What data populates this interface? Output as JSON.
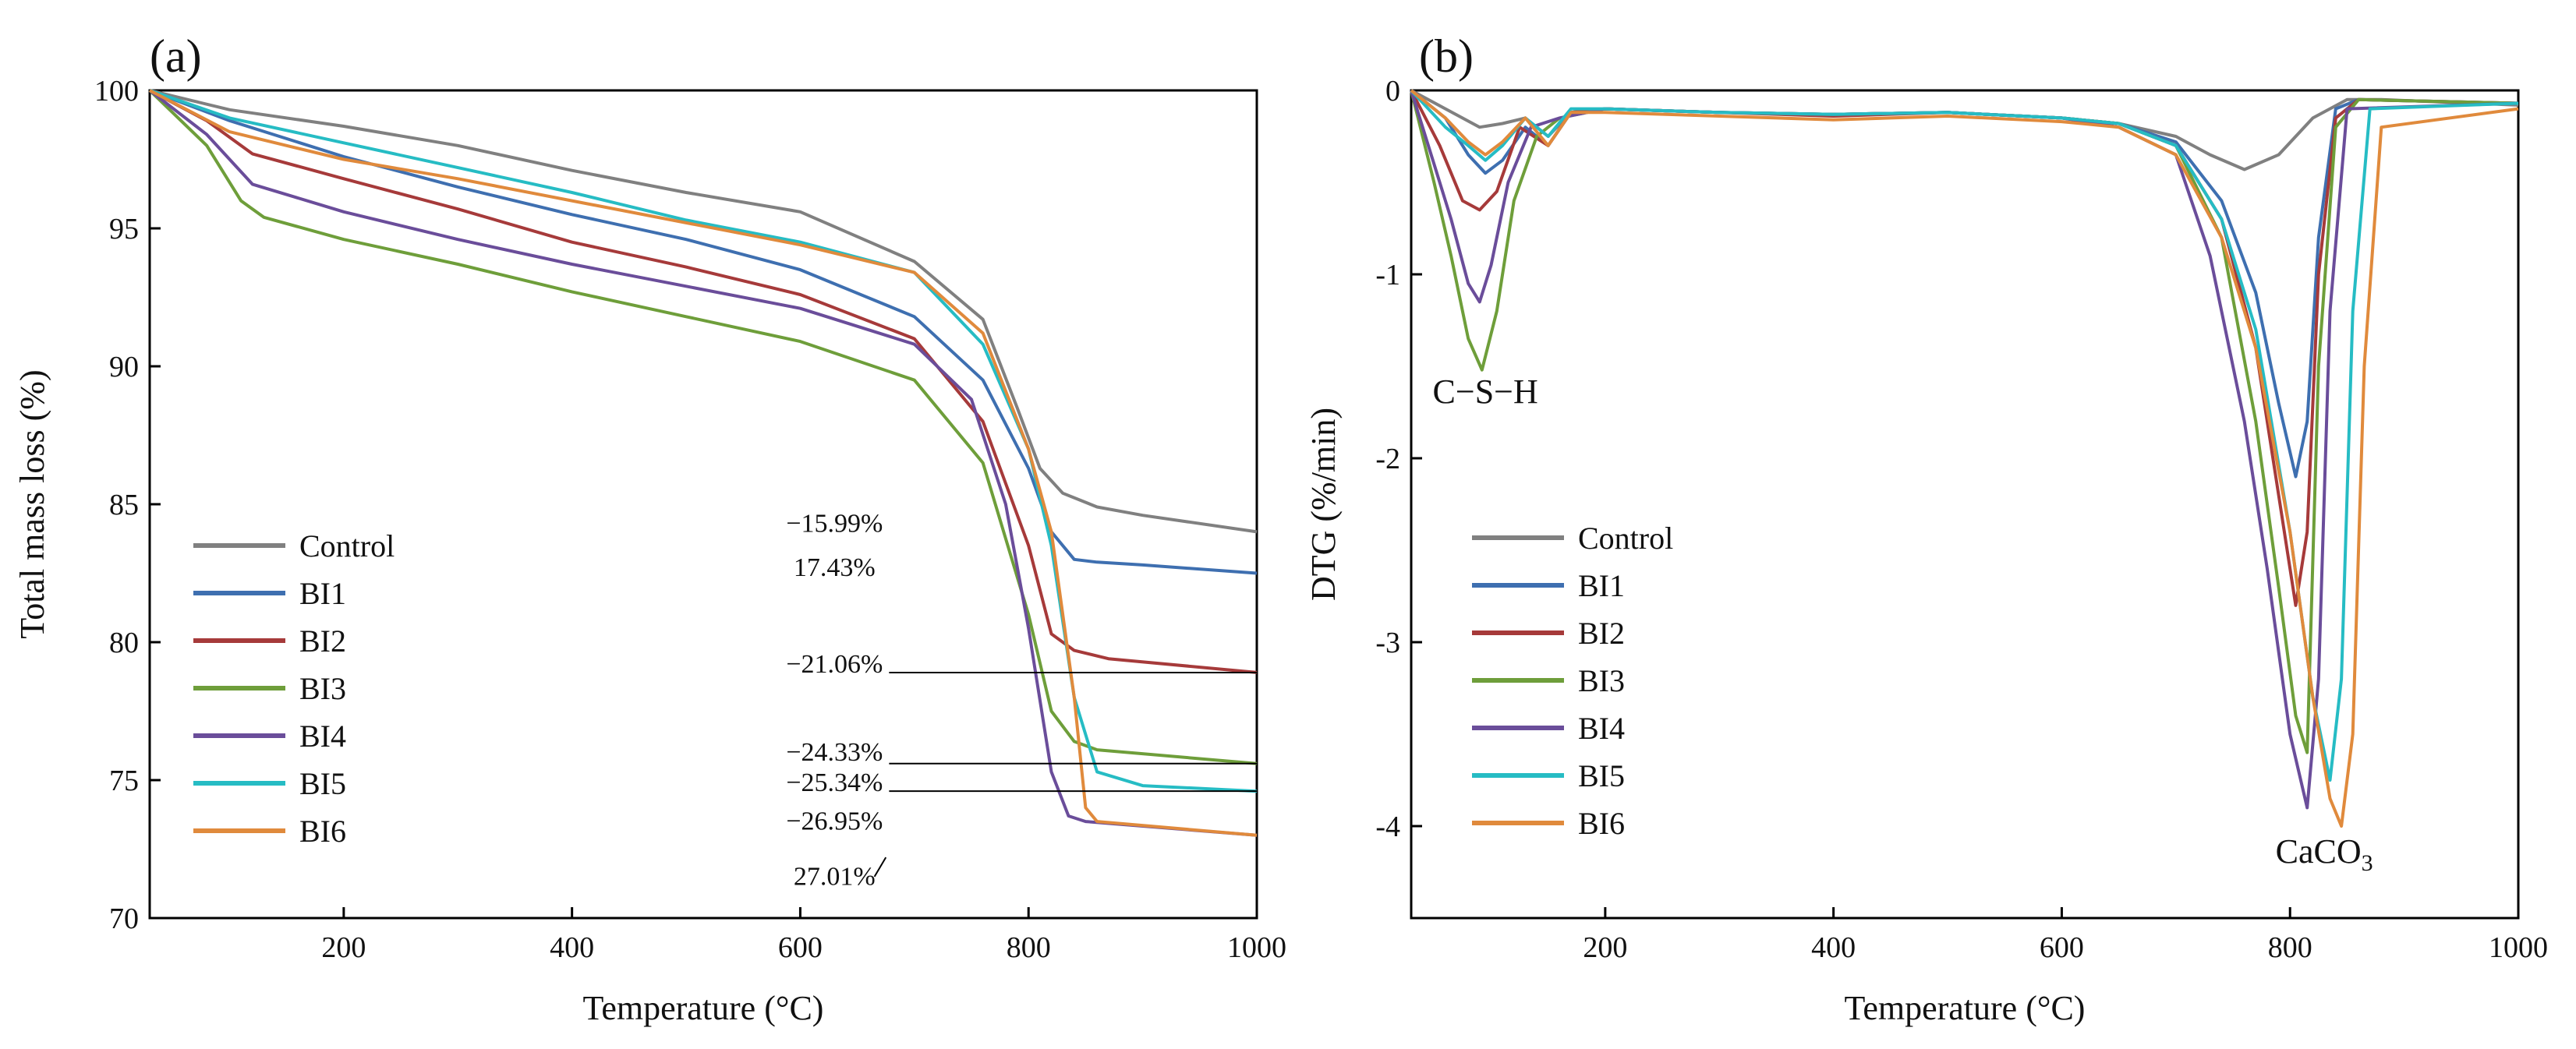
{
  "chart_data": [
    {
      "panel": "(a)",
      "type": "line",
      "xlabel": "Temperature (°C)",
      "ylabel": "Total mass loss (%)",
      "xlim": [
        30,
        1000
      ],
      "ylim": [
        70,
        100
      ],
      "xticks": [
        "200",
        "400",
        "600",
        "800",
        "1000"
      ],
      "yticks": [
        "70",
        "75",
        "80",
        "85",
        "90",
        "95",
        "100"
      ],
      "legend_position": "bottom-left",
      "series": [
        {
          "name": "Control",
          "color": "#808080",
          "x": [
            30,
            100,
            200,
            300,
            400,
            500,
            600,
            700,
            760,
            790,
            810,
            830,
            860,
            900,
            1000
          ],
          "y": [
            100,
            99.3,
            98.7,
            98.0,
            97.1,
            96.3,
            95.6,
            93.8,
            91.7,
            88.5,
            86.3,
            85.4,
            84.9,
            84.6,
            84.0
          ]
        },
        {
          "name": "BI1",
          "color": "#3E6FB0",
          "x": [
            30,
            100,
            200,
            300,
            400,
            500,
            600,
            700,
            760,
            800,
            820,
            840,
            860,
            900,
            1000
          ],
          "y": [
            100,
            98.9,
            97.6,
            96.5,
            95.5,
            94.6,
            93.5,
            91.8,
            89.5,
            86.3,
            84.0,
            83.0,
            82.9,
            82.8,
            82.5
          ]
        },
        {
          "name": "BI2",
          "color": "#A63A3A",
          "x": [
            30,
            80,
            120,
            200,
            300,
            400,
            500,
            600,
            700,
            760,
            800,
            820,
            840,
            870,
            1000
          ],
          "y": [
            100,
            98.9,
            97.7,
            96.8,
            95.7,
            94.5,
            93.6,
            92.6,
            91.0,
            88.0,
            83.5,
            80.3,
            79.7,
            79.4,
            78.9
          ]
        },
        {
          "name": "BI3",
          "color": "#6E9E3A",
          "x": [
            30,
            80,
            110,
            130,
            200,
            300,
            400,
            500,
            600,
            700,
            760,
            800,
            820,
            840,
            860,
            1000
          ],
          "y": [
            100,
            98.0,
            96.0,
            95.4,
            94.6,
            93.7,
            92.7,
            91.8,
            90.9,
            89.5,
            86.5,
            81.0,
            77.5,
            76.4,
            76.1,
            75.6
          ]
        },
        {
          "name": "BI4",
          "color": "#6A4D9A",
          "x": [
            30,
            80,
            120,
            200,
            300,
            400,
            500,
            600,
            700,
            750,
            780,
            800,
            820,
            835,
            850,
            1000
          ],
          "y": [
            100,
            98.4,
            96.6,
            95.6,
            94.6,
            93.7,
            92.9,
            92.1,
            90.8,
            88.8,
            85.0,
            80.5,
            75.3,
            73.7,
            73.5,
            73.0
          ]
        },
        {
          "name": "BI5",
          "color": "#26BCC4",
          "x": [
            30,
            100,
            200,
            300,
            400,
            500,
            600,
            700,
            760,
            800,
            820,
            840,
            860,
            900,
            1000
          ],
          "y": [
            100,
            99.0,
            98.1,
            97.2,
            96.3,
            95.3,
            94.5,
            93.4,
            90.8,
            87.0,
            83.5,
            78.0,
            75.3,
            74.8,
            74.6
          ]
        },
        {
          "name": "BI6",
          "color": "#E08A3C",
          "x": [
            30,
            100,
            200,
            300,
            400,
            500,
            600,
            700,
            760,
            800,
            820,
            840,
            850,
            860,
            1000
          ],
          "y": [
            100,
            98.5,
            97.5,
            96.8,
            96.0,
            95.2,
            94.4,
            93.4,
            91.2,
            87.0,
            84.0,
            78.0,
            74.0,
            73.5,
            73.0
          ]
        }
      ],
      "annotations": [
        {
          "text": "−15.99%",
          "color": "#808080",
          "x": 630,
          "y": 84.0
        },
        {
          "text": "17.43%",
          "color": "#3E6FB0",
          "x": 630,
          "y": 82.4
        },
        {
          "text": "−21.06%",
          "color": "#A63A3A",
          "x": 630,
          "y": 78.9
        },
        {
          "text": "−24.33%",
          "color": "#6E9E3A",
          "x": 630,
          "y": 75.7
        },
        {
          "text": "−25.34%",
          "color": "#26BCC4",
          "x": 630,
          "y": 74.6
        },
        {
          "text": "−26.95%",
          "color": "#E08A3C",
          "x": 630,
          "y": 73.2
        },
        {
          "text": "27.01%",
          "color": "#6A4D9A",
          "x": 630,
          "y": 71.2
        }
      ]
    },
    {
      "panel": "(b)",
      "type": "line",
      "xlabel": "Temperature (°C)",
      "ylabel": "DTG (%/min)",
      "xlim": [
        30,
        1000
      ],
      "ylim": [
        -4.5,
        0
      ],
      "xticks": [
        "200",
        "400",
        "600",
        "800",
        "1000"
      ],
      "yticks": [
        "0",
        "-1",
        "-2",
        "-3",
        "-4"
      ],
      "legend_position": "bottom-left",
      "peak_labels": [
        {
          "text": "C−S−H",
          "x": 95,
          "y": -1.7
        },
        {
          "text": "CaCO3",
          "x": 830,
          "y": -4.2
        }
      ],
      "series": [
        {
          "name": "Control",
          "color": "#808080",
          "x": [
            30,
            60,
            90,
            110,
            130,
            150,
            170,
            200,
            300,
            400,
            500,
            600,
            650,
            700,
            730,
            760,
            790,
            820,
            850,
            880,
            1000
          ],
          "y": [
            0,
            -0.1,
            -0.2,
            -0.18,
            -0.15,
            -0.25,
            -0.12,
            -0.1,
            -0.12,
            -0.13,
            -0.12,
            -0.15,
            -0.18,
            -0.25,
            -0.35,
            -0.43,
            -0.35,
            -0.15,
            -0.05,
            -0.05,
            -0.08
          ]
        },
        {
          "name": "BI1",
          "color": "#3E6FB0",
          "x": [
            30,
            60,
            80,
            95,
            110,
            130,
            150,
            170,
            200,
            300,
            400,
            500,
            600,
            650,
            700,
            740,
            770,
            790,
            805,
            815,
            825,
            840,
            860,
            1000
          ],
          "y": [
            0,
            -0.15,
            -0.35,
            -0.45,
            -0.38,
            -0.2,
            -0.3,
            -0.12,
            -0.1,
            -0.12,
            -0.13,
            -0.12,
            -0.15,
            -0.18,
            -0.28,
            -0.6,
            -1.1,
            -1.7,
            -2.1,
            -1.8,
            -0.8,
            -0.1,
            -0.05,
            -0.07
          ]
        },
        {
          "name": "BI2",
          "color": "#A63A3A",
          "x": [
            30,
            55,
            75,
            90,
            105,
            125,
            150,
            170,
            200,
            300,
            400,
            500,
            600,
            650,
            700,
            740,
            770,
            790,
            805,
            815,
            825,
            840,
            860,
            1000
          ],
          "y": [
            0,
            -0.3,
            -0.6,
            -0.65,
            -0.55,
            -0.2,
            -0.3,
            -0.12,
            -0.1,
            -0.12,
            -0.14,
            -0.12,
            -0.15,
            -0.18,
            -0.3,
            -0.7,
            -1.4,
            -2.2,
            -2.8,
            -2.4,
            -1.0,
            -0.15,
            -0.05,
            -0.07
          ]
        },
        {
          "name": "BI3",
          "color": "#6E9E3A",
          "x": [
            30,
            50,
            65,
            80,
            92,
            105,
            120,
            140,
            160,
            200,
            300,
            400,
            500,
            600,
            650,
            700,
            740,
            770,
            790,
            805,
            815,
            825,
            840,
            860,
            1000
          ],
          "y": [
            0,
            -0.5,
            -0.9,
            -1.35,
            -1.52,
            -1.2,
            -0.6,
            -0.25,
            -0.15,
            -0.1,
            -0.12,
            -0.13,
            -0.12,
            -0.15,
            -0.18,
            -0.3,
            -0.8,
            -1.8,
            -2.7,
            -3.4,
            -3.6,
            -1.5,
            -0.2,
            -0.05,
            -0.07
          ]
        },
        {
          "name": "BI4",
          "color": "#6A4D9A",
          "x": [
            30,
            50,
            65,
            80,
            90,
            100,
            115,
            135,
            160,
            200,
            300,
            400,
            500,
            600,
            650,
            700,
            730,
            760,
            780,
            800,
            815,
            825,
            835,
            850,
            1000
          ],
          "y": [
            0,
            -0.4,
            -0.7,
            -1.05,
            -1.15,
            -0.95,
            -0.5,
            -0.2,
            -0.15,
            -0.1,
            -0.12,
            -0.13,
            -0.12,
            -0.15,
            -0.2,
            -0.35,
            -0.9,
            -1.8,
            -2.6,
            -3.5,
            -3.9,
            -3.2,
            -1.2,
            -0.1,
            -0.07
          ]
        },
        {
          "name": "BI5",
          "color": "#26BCC4",
          "x": [
            30,
            60,
            80,
            95,
            110,
            130,
            150,
            170,
            200,
            300,
            400,
            500,
            600,
            650,
            700,
            740,
            770,
            800,
            820,
            835,
            845,
            855,
            870,
            1000
          ],
          "y": [
            0,
            -0.2,
            -0.3,
            -0.38,
            -0.3,
            -0.15,
            -0.25,
            -0.1,
            -0.1,
            -0.12,
            -0.13,
            -0.12,
            -0.15,
            -0.18,
            -0.3,
            -0.7,
            -1.3,
            -2.4,
            -3.3,
            -3.75,
            -3.2,
            -1.2,
            -0.1,
            -0.07
          ]
        },
        {
          "name": "BI6",
          "color": "#E08A3C",
          "x": [
            30,
            60,
            80,
            95,
            110,
            130,
            150,
            170,
            200,
            300,
            400,
            500,
            600,
            650,
            700,
            740,
            770,
            800,
            820,
            835,
            845,
            855,
            865,
            880,
            1000
          ],
          "y": [
            0,
            -0.15,
            -0.28,
            -0.35,
            -0.28,
            -0.15,
            -0.3,
            -0.12,
            -0.12,
            -0.14,
            -0.16,
            -0.14,
            -0.17,
            -0.2,
            -0.35,
            -0.8,
            -1.4,
            -2.4,
            -3.3,
            -3.85,
            -4.0,
            -3.5,
            -1.5,
            -0.2,
            -0.1
          ]
        }
      ]
    }
  ]
}
